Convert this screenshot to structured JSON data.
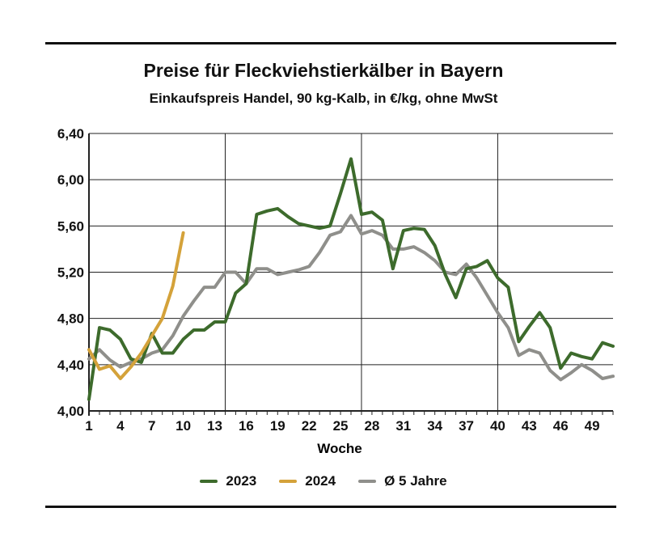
{
  "chart_data": {
    "type": "line",
    "title": "Preise für Fleckviehstierkälber in Bayern",
    "subtitle": "Einkaufspreis Handel, 90 kg-Kalb, in €/kg, ohne MwSt",
    "xlabel": "Woche",
    "ylabel": "",
    "xlim": [
      1,
      51
    ],
    "ylim": [
      4.0,
      6.4
    ],
    "x_ticks": [
      "1",
      "4",
      "7",
      "10",
      "13",
      "16",
      "19",
      "22",
      "25",
      "28",
      "31",
      "34",
      "37",
      "40",
      "43",
      "46",
      "49"
    ],
    "y_ticks": [
      "4,00",
      "4,40",
      "4,80",
      "5,20",
      "5,60",
      "6,00",
      "6,40"
    ],
    "grid": "horizontal + vertical every 13 weeks",
    "legend_position": "bottom",
    "series": [
      {
        "name": "2023",
        "color": "#3d6b2c",
        "x": [
          1,
          2,
          3,
          4,
          5,
          6,
          7,
          8,
          9,
          10,
          11,
          12,
          13,
          14,
          15,
          16,
          17,
          18,
          19,
          20,
          21,
          22,
          23,
          24,
          25,
          26,
          27,
          28,
          29,
          30,
          31,
          32,
          33,
          34,
          35,
          36,
          37,
          38,
          39,
          40,
          41,
          42,
          43,
          44,
          45,
          46,
          47,
          48,
          49,
          50,
          51
        ],
        "y": [
          4.1,
          4.72,
          4.7,
          4.62,
          4.45,
          4.42,
          4.67,
          4.5,
          4.5,
          4.62,
          4.7,
          4.7,
          4.77,
          4.77,
          5.02,
          5.1,
          5.7,
          5.73,
          5.75,
          5.68,
          5.62,
          5.6,
          5.58,
          5.6,
          5.88,
          6.18,
          5.7,
          5.72,
          5.65,
          5.23,
          5.56,
          5.58,
          5.57,
          5.43,
          5.18,
          4.98,
          5.23,
          5.25,
          5.3,
          5.15,
          5.07,
          4.6,
          4.73,
          4.85,
          4.72,
          4.37,
          4.5,
          4.47,
          4.45,
          4.59,
          4.56
        ]
      },
      {
        "name": "2024",
        "color": "#d4a23a",
        "x": [
          1,
          2,
          3,
          4,
          5,
          6,
          7,
          8,
          9,
          10
        ],
        "y": [
          4.53,
          4.36,
          4.39,
          4.28,
          4.38,
          4.5,
          4.65,
          4.8,
          5.08,
          5.54
        ]
      },
      {
        "name": "Ø 5 Jahre",
        "color": "#8f8f8b",
        "x": [
          1,
          2,
          3,
          4,
          5,
          6,
          7,
          8,
          9,
          10,
          11,
          12,
          13,
          14,
          15,
          16,
          17,
          18,
          19,
          20,
          21,
          22,
          23,
          24,
          25,
          26,
          27,
          28,
          29,
          30,
          31,
          32,
          33,
          34,
          35,
          36,
          37,
          38,
          39,
          40,
          41,
          42,
          43,
          44,
          45,
          46,
          47,
          48,
          49,
          50,
          51
        ],
        "y": [
          4.45,
          4.53,
          4.44,
          4.38,
          4.42,
          4.45,
          4.5,
          4.53,
          4.65,
          4.82,
          4.95,
          5.07,
          5.07,
          5.2,
          5.2,
          5.1,
          5.23,
          5.23,
          5.18,
          5.2,
          5.22,
          5.25,
          5.37,
          5.52,
          5.55,
          5.69,
          5.53,
          5.56,
          5.52,
          5.4,
          5.4,
          5.42,
          5.37,
          5.3,
          5.2,
          5.18,
          5.27,
          5.15,
          5.0,
          4.85,
          4.72,
          4.48,
          4.53,
          4.5,
          4.35,
          4.27,
          4.33,
          4.4,
          4.35,
          4.28,
          4.3
        ]
      }
    ]
  }
}
